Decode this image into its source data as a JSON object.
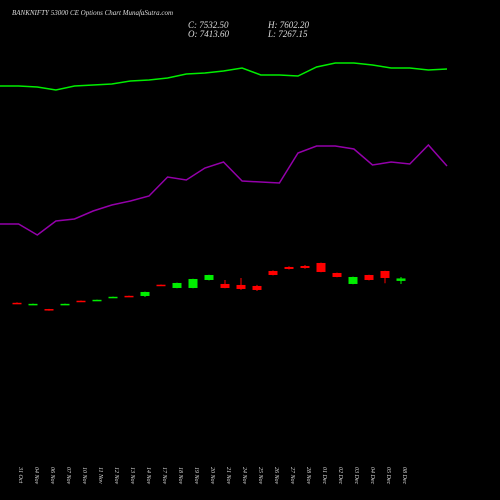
{
  "chart_data": {
    "type": "candlestick",
    "title": "BANKNIFTY 53000 CE Options Chart MunafaSutra.com",
    "info": [
      "C: 7532.50",
      "O: 7413.60",
      "H: 7602.20",
      "L: 7267.15"
    ],
    "categories": [
      "31 Oct",
      "04 Nov",
      "06 Nov",
      "07 Nov",
      "10 Nov",
      "11 Nov",
      "12 Nov",
      "13 Nov",
      "14 Nov",
      "17 Nov",
      "18 Nov",
      "19 Nov",
      "20 Nov",
      "21 Nov",
      "24 Nov",
      "25 Nov",
      "26 Nov",
      "27 Nov",
      "28 Nov",
      "01 Dec",
      "02 Dec",
      "03 Dec",
      "04 Dec",
      "05 Dec",
      "08 Dec"
    ],
    "open": [
      6360,
      6290,
      6060,
      6290,
      6460,
      6490,
      6630,
      6695,
      6688,
      7230,
      7073,
      7073,
      7458,
      7266,
      7218,
      7170,
      7891,
      8083,
      8131,
      8276,
      7795,
      7266,
      7698,
      7891,
      7413.6
    ],
    "high": [
      6380,
      6320,
      6070,
      6320,
      6470,
      6515,
      6660,
      6705,
      6900,
      7240,
      7330,
      7520,
      7710,
      7458,
      7554,
      7220,
      7920,
      8120,
      8180,
      8290,
      7810,
      7620,
      7710,
      7900,
      7602.2
    ],
    "low": [
      6330,
      6280,
      5980,
      6285,
      6435,
      6480,
      6620,
      6670,
      6640,
      7195,
      7060,
      7060,
      7440,
      7060,
      6980,
      6930,
      7680,
      7960,
      8000,
      7830,
      7590,
      7250,
      7440,
      7300,
      7267.15
    ],
    "close": [
      6340,
      6310,
      5990,
      6310,
      6440,
      6505,
      6650,
      6680,
      6881,
      7205,
      7314,
      7506,
      7698,
      7073,
      7025,
      6977,
      7698,
      7987,
      8035,
      7843,
      7602,
      7602,
      7458,
      7554,
      7532.5
    ],
    "up_color": "#00ee00",
    "down_color": "#ff0000",
    "series": [
      {
        "color": "#00ee00",
        "values": [
          16789,
          16789,
          16741,
          16597,
          16789,
          16838,
          16886,
          17030,
          17078,
          17174,
          17367,
          17415,
          17511,
          17655,
          17319,
          17319,
          17270,
          17703,
          17896,
          17896,
          17800,
          17655,
          17655,
          17559,
          17607
        ]
      },
      {
        "color": "#9400aa",
        "values": [
          10152,
          10152,
          9623,
          10296,
          10392,
          10777,
          11066,
          11258,
          11498,
          12412,
          12268,
          12845,
          13134,
          12220,
          12172,
          12124,
          13567,
          13903,
          13903,
          13759,
          12990,
          13134,
          13038,
          13951,
          12942
        ]
      }
    ],
    "ylim": [
      -1200,
      19000
    ]
  }
}
